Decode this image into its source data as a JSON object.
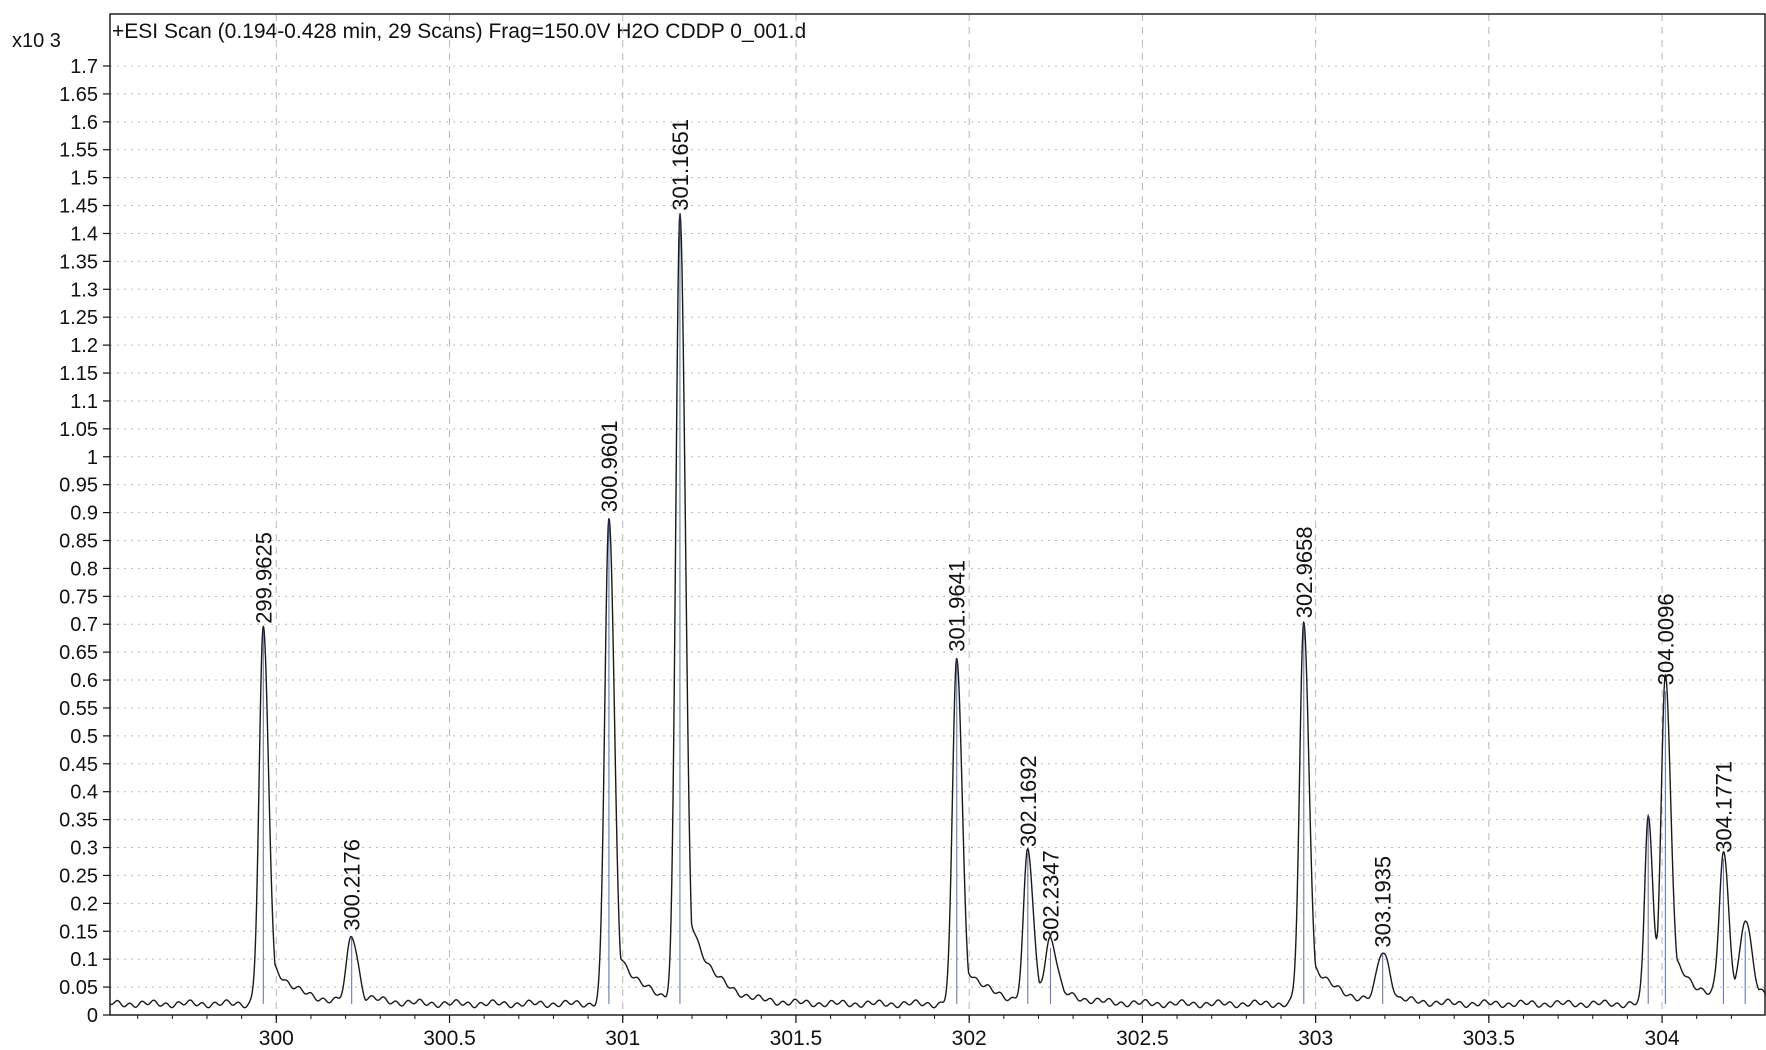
{
  "chart_data": {
    "type": "line",
    "title": "+ESI Scan (0.194-0.428 min, 29 Scans) Frag=150.0V H2O CDDP 0_001.d",
    "y_multiplier_label": "x10 3",
    "xlabel": "",
    "ylabel": "",
    "xlim": [
      299.52,
      304.3
    ],
    "ylim": [
      0,
      1.76
    ],
    "grid": true,
    "x_ticks": [
      300,
      300.5,
      301,
      301.5,
      302,
      302.5,
      303,
      303.5,
      304
    ],
    "x_tick_labels": [
      "300",
      "300.5",
      "301",
      "301.5",
      "302",
      "302.5",
      "303",
      "303.5",
      "304"
    ],
    "y_ticks": [
      0,
      0.05,
      0.1,
      0.15,
      0.2,
      0.25,
      0.3,
      0.35,
      0.4,
      0.45,
      0.5,
      0.55,
      0.6,
      0.65,
      0.7,
      0.75,
      0.8,
      0.85,
      0.9,
      0.95,
      1,
      1.05,
      1.1,
      1.15,
      1.2,
      1.25,
      1.3,
      1.35,
      1.4,
      1.45,
      1.5,
      1.55,
      1.6,
      1.65,
      1.7
    ],
    "y_tick_labels": [
      "0",
      "0.05",
      "0.1",
      "0.15",
      "0.2",
      "0.25",
      "0.3",
      "0.35",
      "0.4",
      "0.45",
      "0.5",
      "0.55",
      "0.6",
      "0.65",
      "0.7",
      "0.75",
      "0.8",
      "0.85",
      "0.9",
      "0.95",
      "1",
      "1.05",
      "1.1",
      "1.15",
      "1.2",
      "1.25",
      "1.3",
      "1.35",
      "1.4",
      "1.45",
      "1.5",
      "1.55",
      "1.6",
      "1.65",
      "1.7"
    ],
    "baseline": 0.02,
    "peaks": [
      {
        "x": 299.9625,
        "y": 0.67,
        "w": 0.012,
        "label": "299.9625"
      },
      {
        "x": 300.2176,
        "y": 0.12,
        "w": 0.014,
        "label": "300.2176"
      },
      {
        "x": 300.9601,
        "y": 0.87,
        "w": 0.012,
        "label": "300.9601"
      },
      {
        "x": 301.1651,
        "y": 1.41,
        "w": 0.012,
        "label": "301.1651"
      },
      {
        "x": 301.9641,
        "y": 0.62,
        "w": 0.012,
        "label": "301.9641"
      },
      {
        "x": 302.1692,
        "y": 0.27,
        "w": 0.012,
        "label": "302.1692"
      },
      {
        "x": 302.2347,
        "y": 0.1,
        "w": 0.014,
        "label": "302.2347"
      },
      {
        "x": 302.9658,
        "y": 0.68,
        "w": 0.012,
        "label": "302.9658"
      },
      {
        "x": 303.1935,
        "y": 0.09,
        "w": 0.016,
        "label": "303.1935"
      },
      {
        "x": 303.96,
        "y": 0.34,
        "w": 0.01,
        "label": ""
      },
      {
        "x": 304.0096,
        "y": 0.56,
        "w": 0.012,
        "label": "304.0096"
      },
      {
        "x": 304.1771,
        "y": 0.26,
        "w": 0.012,
        "label": "304.1771"
      },
      {
        "x": 304.24,
        "y": 0.13,
        "w": 0.014,
        "label": ""
      }
    ],
    "colors": {
      "line": "#1a1a1a",
      "peak_core": "#2b3f8f",
      "grid": "#b8b8b8",
      "axis": "#111111"
    }
  }
}
